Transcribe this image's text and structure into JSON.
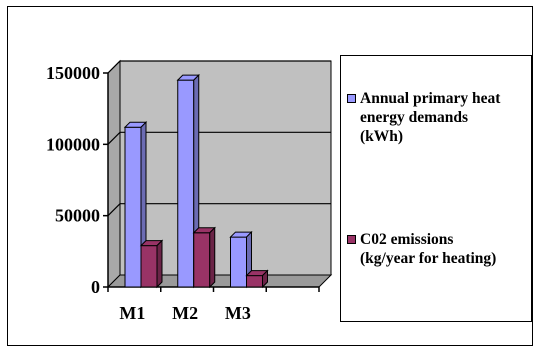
{
  "chart_data": {
    "type": "bar",
    "style": "3d-clustered-column",
    "categories": [
      "M1",
      "M2",
      "M3",
      ""
    ],
    "series": [
      {
        "name": "Annual primary heat\nenergy demands\n(kWh)",
        "values": [
          112000,
          145000,
          35000,
          null
        ],
        "color": "#9999ff"
      },
      {
        "name": "C02 emissions\n(kg/year for heating)",
        "values": [
          29000,
          38000,
          8000,
          null
        ],
        "color": "#993366"
      }
    ],
    "y_ticks": [
      0,
      50000,
      100000,
      150000
    ],
    "ylim": [
      0,
      150000
    ],
    "grid": true,
    "legend": "right",
    "background_color": "#c0c0c0",
    "gridline_color": "#000000"
  }
}
